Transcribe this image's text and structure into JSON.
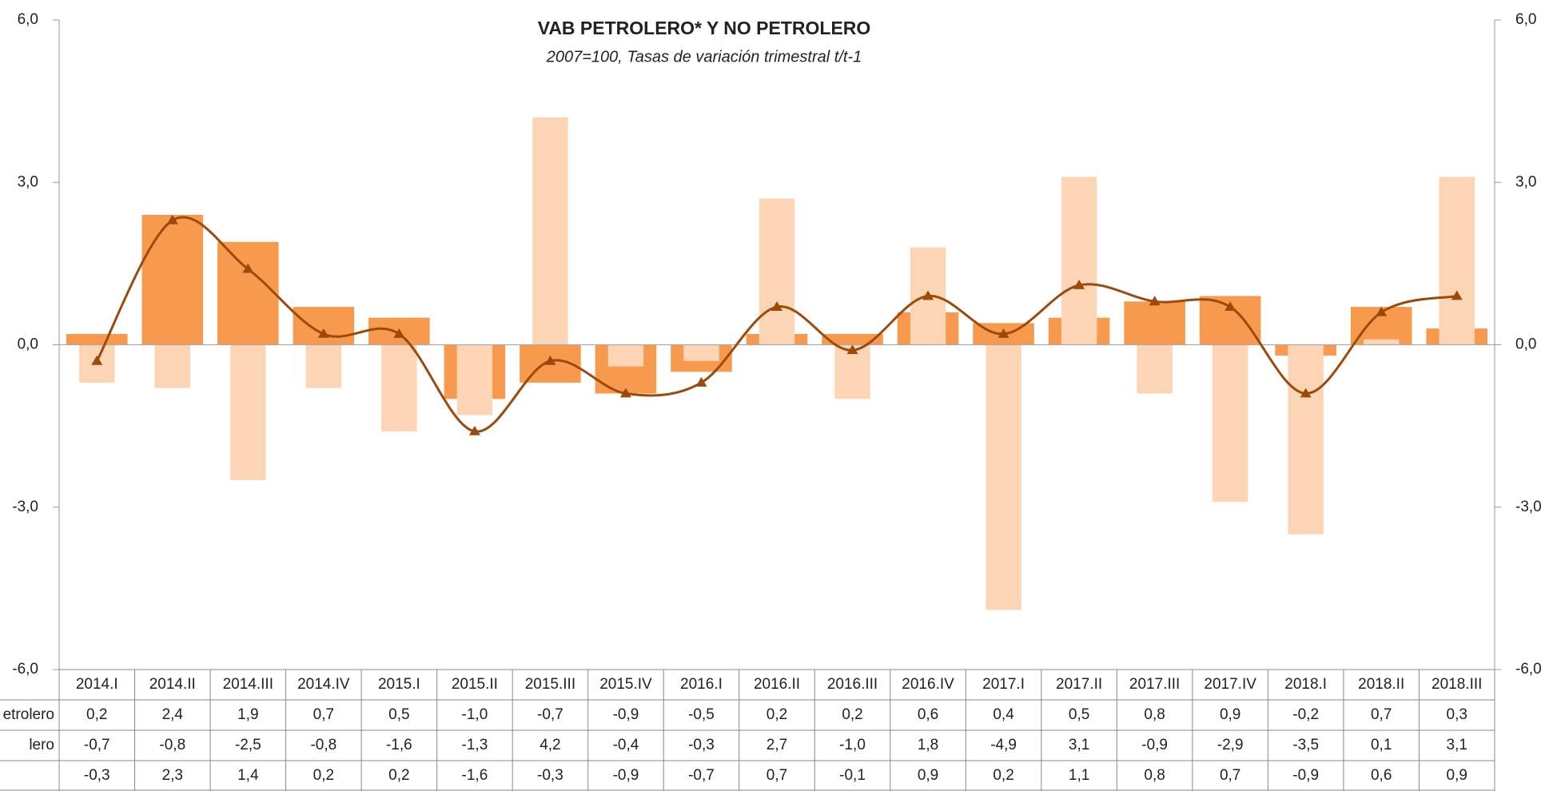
{
  "chart_data": {
    "type": "bar",
    "title": "VAB PETROLERO* Y NO PETROLERO",
    "subtitle": "2007=100, Tasas de variación trimestral t/t-1",
    "categories": [
      "2014.I",
      "2014.II",
      "2014.III",
      "2014.IV",
      "2015.I",
      "2015.II",
      "2015.III",
      "2015.IV",
      "2016.I",
      "2016.II",
      "2016.III",
      "2016.IV",
      "2017.I",
      "2017.II",
      "2017.III",
      "2017.IV",
      "2018.I",
      "2018.II",
      "2018.III"
    ],
    "series": [
      {
        "name": "etrolero",
        "type": "bar",
        "color": "#f79a4d",
        "values": [
          0.2,
          2.4,
          1.9,
          0.7,
          0.5,
          -1.0,
          -0.7,
          -0.9,
          -0.5,
          0.2,
          0.2,
          0.6,
          0.4,
          0.5,
          0.8,
          0.9,
          -0.2,
          0.7,
          0.3
        ],
        "value_labels": [
          "0,2",
          "2,4",
          "1,9",
          "0,7",
          "0,5",
          "-1,0",
          "-0,7",
          "-0,9",
          "-0,5",
          "0,2",
          "0,2",
          "0,6",
          "0,4",
          "0,5",
          "0,8",
          "0,9",
          "-0,2",
          "0,7",
          "0,3"
        ]
      },
      {
        "name": "lero",
        "type": "bar",
        "color": "#fcd5b5",
        "values": [
          -0.7,
          -0.8,
          -2.5,
          -0.8,
          -1.6,
          -1.3,
          4.2,
          -0.4,
          -0.3,
          2.7,
          -1.0,
          1.8,
          -4.9,
          3.1,
          -0.9,
          -2.9,
          -3.5,
          0.1,
          3.1
        ],
        "value_labels": [
          "-0,7",
          "-0,8",
          "-2,5",
          "-0,8",
          "-1,6",
          "-1,3",
          "4,2",
          "-0,4",
          "-0,3",
          "2,7",
          "-1,0",
          "1,8",
          "-4,9",
          "3,1",
          "-0,9",
          "-2,9",
          "-3,5",
          "0,1",
          "3,1"
        ]
      },
      {
        "type": "line",
        "axis": "y2",
        "color": "#9c4a0c",
        "values": [
          -0.3,
          2.3,
          1.4,
          0.2,
          0.2,
          -1.6,
          -0.3,
          -0.9,
          -0.7,
          0.7,
          -0.1,
          0.9,
          0.2,
          1.1,
          0.8,
          0.7,
          -0.9,
          0.6,
          0.9
        ],
        "value_labels": [
          "-0,3",
          "2,3",
          "1,4",
          "0,2",
          "0,2",
          "-1,6",
          "-0,3",
          "-0,9",
          "-0,7",
          "0,7",
          "-0,1",
          "0,9",
          "0,2",
          "1,1",
          "0,8",
          "0,7",
          "-0,9",
          "0,6",
          "0,9"
        ]
      }
    ],
    "ylim": [
      -6,
      6
    ],
    "yticks": [
      {
        "value": -6,
        "label": "-6,0"
      },
      {
        "value": -3,
        "label": "-3,0"
      },
      {
        "value": 0,
        "label": "0,0"
      },
      {
        "value": 3,
        "label": "3,0"
      },
      {
        "value": 6,
        "label": "6,0"
      }
    ],
    "y2lim": [
      -6,
      6
    ],
    "y2ticks": [
      {
        "value": -6,
        "label": "-6,0"
      },
      {
        "value": -3,
        "label": "-3,0"
      },
      {
        "value": 0,
        "label": "0,0"
      },
      {
        "value": 3,
        "label": "3,0"
      },
      {
        "value": 6,
        "label": "6,0"
      }
    ],
    "grid": false
  }
}
